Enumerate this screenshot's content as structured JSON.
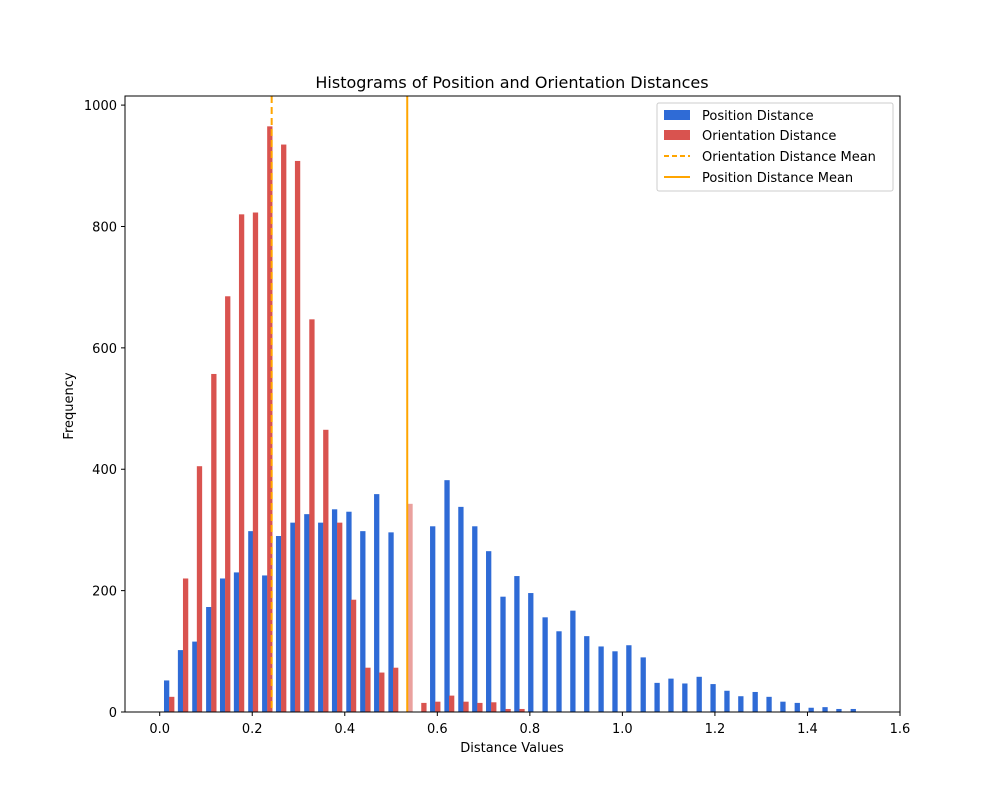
{
  "chart_data": {
    "type": "bar",
    "title": "Histograms of Position and Orientation Distances",
    "xlabel": "Distance Values",
    "ylabel": "Frequency",
    "xlim": [
      -0.075,
      1.6
    ],
    "ylim": [
      0,
      1015
    ],
    "xticks": [
      0.0,
      0.2,
      0.4,
      0.6,
      0.8,
      1.0,
      1.2,
      1.4,
      1.6
    ],
    "xtick_labels": [
      "0.0",
      "0.2",
      "0.4",
      "0.6",
      "0.8",
      "1.0",
      "1.2",
      "1.4",
      "1.6"
    ],
    "yticks": [
      0,
      200,
      400,
      600,
      800,
      1000
    ],
    "ytick_labels": [
      "0",
      "200",
      "400",
      "600",
      "800",
      "1000"
    ],
    "grid": false,
    "legend_position": "top-right",
    "series": [
      {
        "name": "Position Distance",
        "color": "#2f6bd6",
        "x": [
          0.015,
          0.045,
          0.076,
          0.106,
          0.136,
          0.166,
          0.197,
          0.227,
          0.257,
          0.288,
          0.318,
          0.348,
          0.378,
          0.409,
          0.439,
          0.469,
          0.5,
          0.53,
          0.56,
          0.59,
          0.621,
          0.651,
          0.681,
          0.711,
          0.742,
          0.772,
          0.802,
          0.833,
          0.863,
          0.893,
          0.923,
          0.954,
          0.984,
          1.014,
          1.045,
          1.075,
          1.105,
          1.135,
          1.166,
          1.196,
          1.226,
          1.256,
          1.287,
          1.317,
          1.347,
          1.378,
          1.408,
          1.438,
          1.468,
          1.499
        ],
        "values": [
          52,
          102,
          116,
          173,
          220,
          230,
          298,
          225,
          290,
          312,
          326,
          312,
          334,
          330,
          298,
          359,
          296,
          0,
          0,
          306,
          382,
          338,
          306,
          265,
          190,
          224,
          196,
          156,
          133,
          167,
          125,
          108,
          100,
          110,
          90,
          48,
          55,
          47,
          58,
          46,
          35,
          26,
          33,
          25,
          17,
          15,
          7,
          8,
          5,
          5
        ]
      },
      {
        "name": "Orientation Distance",
        "color": "#d9534f",
        "x": [
          0.026,
          0.056,
          0.086,
          0.117,
          0.147,
          0.177,
          0.207,
          0.238,
          0.268,
          0.298,
          0.329,
          0.359,
          0.389,
          0.419,
          0.45,
          0.48,
          0.51,
          0.541,
          0.571,
          0.601,
          0.631,
          0.662,
          0.692,
          0.722,
          0.753,
          0.783
        ],
        "values": [
          25,
          220,
          405,
          557,
          685,
          820,
          823,
          965,
          935,
          908,
          647,
          465,
          312,
          185,
          73,
          65,
          73,
          343,
          15,
          17,
          27,
          17,
          15,
          16,
          5,
          5
        ]
      }
    ],
    "reference_lines": [
      {
        "name": "Orientation Distance Mean",
        "x": 0.242,
        "color": "#ffa500",
        "style": "dashed"
      },
      {
        "name": "Position Distance Mean",
        "x": 0.535,
        "color": "#ffa500",
        "style": "solid"
      }
    ]
  }
}
